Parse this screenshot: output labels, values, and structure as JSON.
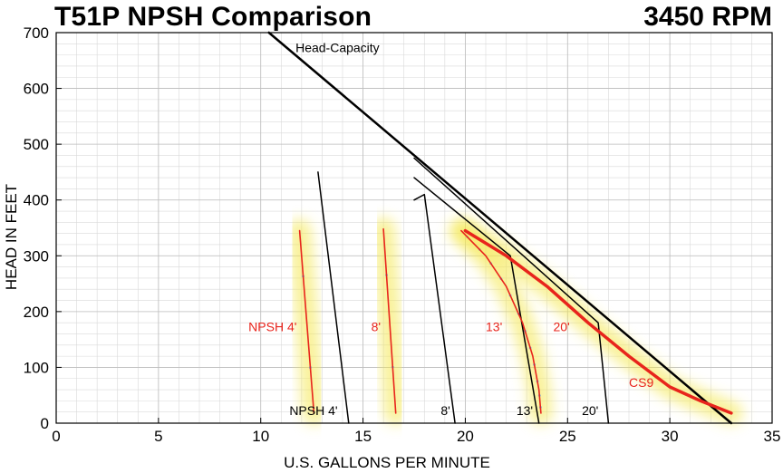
{
  "chart_data": {
    "type": "line",
    "title": "T51P NPSH Comparison",
    "subtitle": "3450 RPM",
    "xlabel": "U.S. GALLONS PER MINUTE",
    "ylabel": "HEAD IN FEET",
    "xlim": [
      0,
      35
    ],
    "ylim": [
      0,
      700
    ],
    "xticks": [
      0,
      5,
      10,
      15,
      20,
      25,
      30,
      35
    ],
    "yticks": [
      0,
      100,
      200,
      300,
      400,
      500,
      600,
      700
    ],
    "grid": true,
    "colors": {
      "black": "#000000",
      "red": "#e8241c",
      "glow": "#f4e84a",
      "dots": "#6fb8e8"
    },
    "series": [
      {
        "name": "Head-Capacity",
        "color": "#000000",
        "width": 2.5,
        "x": [
          10.4,
          33
        ],
        "y": [
          700,
          0
        ]
      },
      {
        "name": "NPSH 4' (black)",
        "color": "#000000",
        "width": 1.5,
        "x": [
          12.8,
          14.3
        ],
        "y": [
          450,
          0
        ]
      },
      {
        "name": "8' (black)",
        "color": "#000000",
        "width": 1.5,
        "x": [
          17.5,
          18.0,
          19.5
        ],
        "y": [
          400,
          410,
          0
        ]
      },
      {
        "name": "13' (black)",
        "color": "#000000",
        "width": 1.5,
        "x": [
          17.5,
          22.2,
          23.6
        ],
        "y": [
          440,
          300,
          0
        ]
      },
      {
        "name": "20' (black)",
        "color": "#000000",
        "width": 1.5,
        "x": [
          17.5,
          26.5,
          27.0
        ],
        "y": [
          475,
          180,
          0
        ]
      },
      {
        "name": "NPSH 4' (red)",
        "color": "#e8241c",
        "width": 1.6,
        "glow": true,
        "x": [
          11.9,
          12.6
        ],
        "y": [
          345,
          18
        ]
      },
      {
        "name": "8' (red)",
        "color": "#e8241c",
        "width": 1.6,
        "glow": true,
        "x": [
          16.0,
          16.6
        ],
        "y": [
          348,
          18
        ]
      },
      {
        "name": "13' (red)",
        "color": "#e8241c",
        "width": 1.6,
        "glow": true,
        "x": [
          19.8,
          21.0,
          22.0,
          22.8,
          23.3,
          23.6,
          23.7
        ],
        "y": [
          345,
          300,
          245,
          180,
          120,
          60,
          18
        ]
      },
      {
        "name": "CS9",
        "color": "#e8241c",
        "width": 3.5,
        "glow": true,
        "x": [
          20.0,
          22.0,
          24.0,
          26.0,
          28.0,
          30.0,
          31.5,
          33.0
        ],
        "y": [
          345,
          300,
          245,
          180,
          120,
          65,
          40,
          18
        ]
      }
    ],
    "annotations": [
      {
        "text": "Head-Capacity",
        "x": 11.7,
        "y": 665,
        "color": "#000000"
      },
      {
        "text": "NPSH 4'",
        "x": 9.4,
        "y": 165,
        "color": "#e8241c"
      },
      {
        "text": "8'",
        "x": 15.4,
        "y": 165,
        "color": "#e8241c"
      },
      {
        "text": "13'",
        "x": 21.0,
        "y": 165,
        "color": "#e8241c"
      },
      {
        "text": "20'",
        "x": 24.3,
        "y": 165,
        "color": "#e8241c"
      },
      {
        "text": "CS9",
        "x": 28.0,
        "y": 65,
        "color": "#e8241c"
      },
      {
        "text": "NPSH 4'",
        "x": 11.4,
        "y": 15,
        "color": "#000000"
      },
      {
        "text": "8'",
        "x": 18.8,
        "y": 15,
        "color": "#000000"
      },
      {
        "text": "13'",
        "x": 22.5,
        "y": 15,
        "color": "#000000"
      },
      {
        "text": "20'",
        "x": 25.7,
        "y": 15,
        "color": "#000000"
      }
    ]
  }
}
